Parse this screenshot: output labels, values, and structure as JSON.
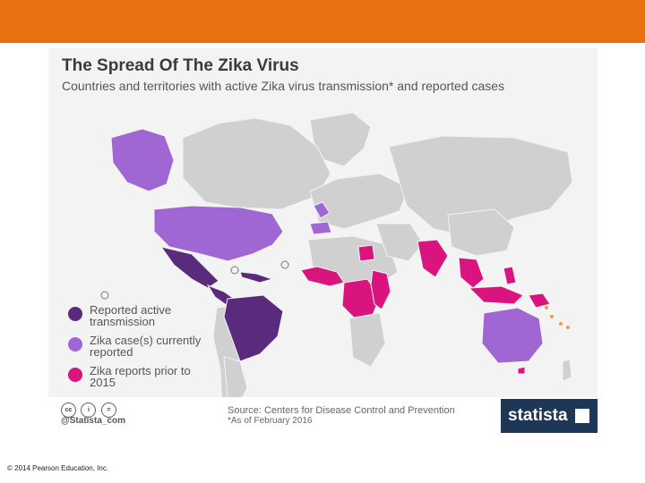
{
  "colors": {
    "header_bar": "#e8700e",
    "land": "#d0d0d0",
    "active": "#5a2a7d",
    "current": "#a066d3",
    "prior": "#d9147f",
    "brand_panel": "#1f3756"
  },
  "map": {
    "title": "The Spread Of The Zika Virus",
    "subtitle": "Countries and territories with active Zika virus transmission* and reported cases"
  },
  "legend": [
    {
      "label": "Reported active transmission",
      "color": "#5a2a7d"
    },
    {
      "label": "Zika case(s) currently reported",
      "color": "#a066d3"
    },
    {
      "label": "Zika reports prior to 2015",
      "color": "#d9147f"
    }
  ],
  "footer": {
    "cc_icons": [
      "cc",
      "i",
      "="
    ],
    "handle": "@Statista_com",
    "source": "Source: Centers for Disease Control and Prevention",
    "footnote": "*As of February 2016",
    "brand": "statista"
  },
  "slide": {
    "copyright": "© 2014 Pearson Education, Inc."
  }
}
